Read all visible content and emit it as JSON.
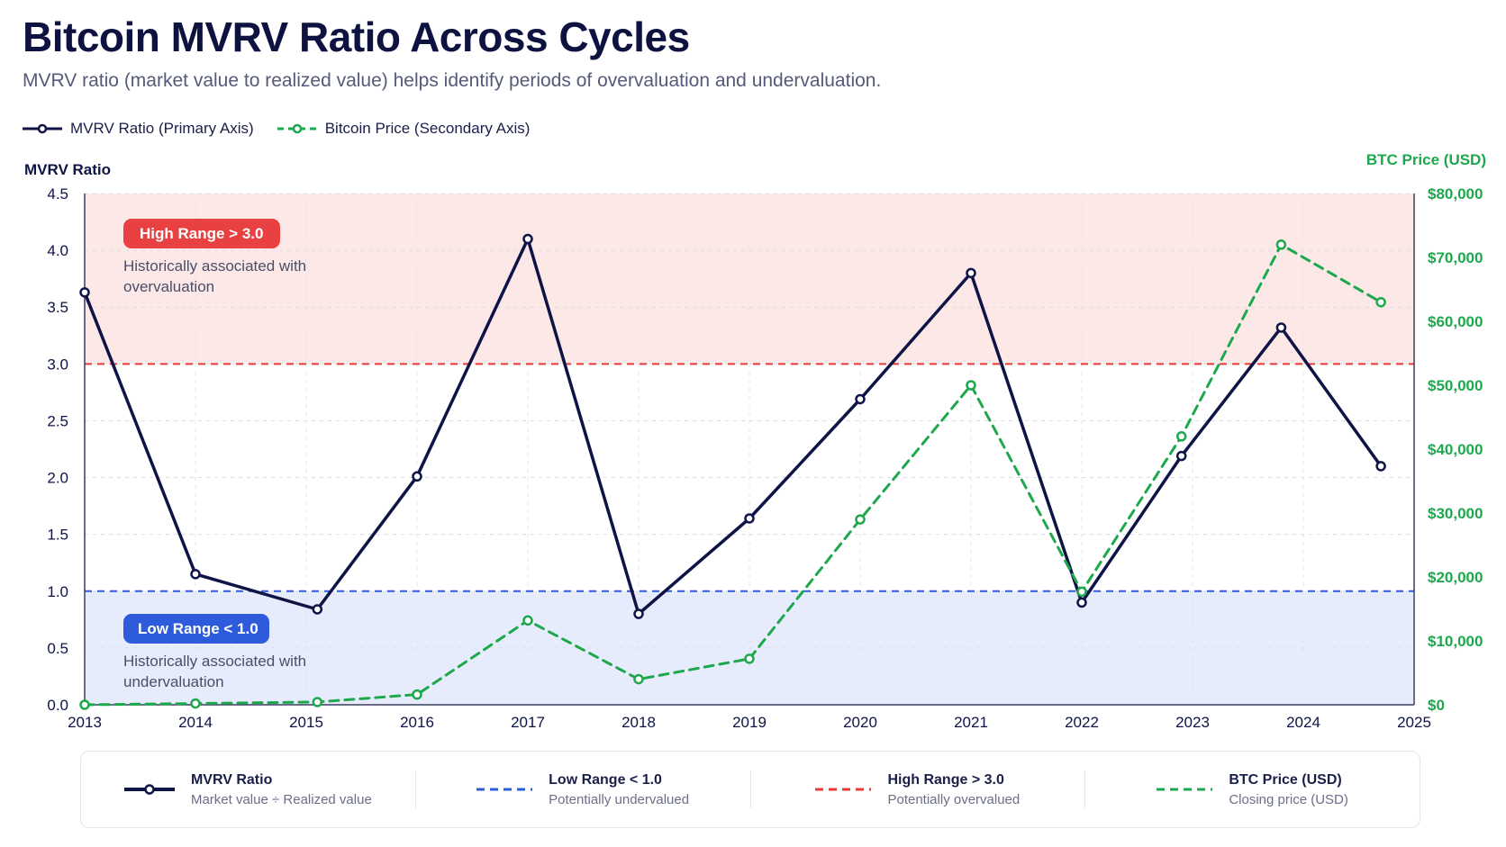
{
  "header": {
    "title": "Bitcoin MVRV Ratio Across Cycles",
    "subtitle": "MVRV ratio (market value to realized value) helps identify periods of overvaluation and undervaluation."
  },
  "top_legend": [
    {
      "label": "MVRV Ratio (Primary Axis)",
      "color": "#0f1446",
      "style": "solid"
    },
    {
      "label": "Bitcoin Price (Secondary Axis)",
      "color": "#1ea84d",
      "style": "dashed"
    }
  ],
  "bands": {
    "high": {
      "badge": "High Range > 3.0",
      "note": [
        "Historically associated with",
        "overvaluation"
      ],
      "color": "#e63b3b"
    },
    "low": {
      "badge": "Low Range < 1.0",
      "note": [
        "Historically associated with",
        "undervaluation"
      ],
      "color": "#2e5bdc"
    }
  },
  "bottom_legend": [
    {
      "name": "MVRV Ratio",
      "desc": "Market value ÷ Realized value",
      "color": "#0f1446",
      "style": "solid-marker"
    },
    {
      "name": "Low Range < 1.0",
      "desc": "Potentially undervalued",
      "color": "#2e5bdc",
      "style": "dashed"
    },
    {
      "name": "High Range > 3.0",
      "desc": "Potentially overvalued",
      "color": "#e63b3b",
      "style": "dashed"
    },
    {
      "name": "BTC Price (USD)",
      "desc": "Closing price (USD)",
      "color": "#1ea84d",
      "style": "dashed"
    }
  ],
  "chart_data": {
    "type": "line",
    "title": "Bitcoin MVRV Ratio Across Cycles",
    "xlabel": "",
    "ylabel": "MVRV Ratio",
    "y2label": "BTC Price (USD)",
    "xlim": [
      2013,
      2025
    ],
    "ylim": [
      0,
      4.5
    ],
    "y2lim": [
      0,
      80000
    ],
    "x_ticks": [
      2013,
      2014,
      2015,
      2016,
      2017,
      2018,
      2019,
      2020,
      2021,
      2022,
      2023,
      2024,
      2025
    ],
    "y_ticks": [
      "0.0",
      "0.5",
      "1.0",
      "1.5",
      "2.0",
      "2.5",
      "3.0",
      "3.5",
      "4.0",
      "4.5"
    ],
    "y2_ticks": [
      "$0",
      "$10,000",
      "$20,000",
      "$30,000",
      "$40,000",
      "$50,000",
      "$60,000",
      "$70,000",
      "$80,000"
    ],
    "thresholds": {
      "low": 1.0,
      "high": 3.0
    },
    "grid": true,
    "series": [
      {
        "name": "MVRV Ratio",
        "axis": "primary",
        "color": "#0f1446",
        "x": [
          2013.0,
          2014.0,
          2015.1,
          2016.0,
          2017.0,
          2018.0,
          2019.0,
          2020.0,
          2021.0,
          2022.0,
          2022.9,
          2023.8,
          2024.7
        ],
        "values": [
          3.63,
          1.15,
          0.84,
          2.01,
          4.1,
          0.8,
          1.64,
          2.69,
          3.8,
          0.9,
          2.19,
          3.32,
          2.1
        ]
      },
      {
        "name": "Bitcoin Price",
        "axis": "secondary",
        "color": "#1ea84d",
        "x": [
          2013.0,
          2014.0,
          2015.1,
          2016.0,
          2017.0,
          2018.0,
          2019.0,
          2020.0,
          2021.0,
          2022.0,
          2022.9,
          2023.8,
          2024.7
        ],
        "values": [
          0,
          200,
          430,
          1600,
          13200,
          4000,
          7200,
          29000,
          50000,
          17700,
          42000,
          72000,
          63000
        ]
      }
    ]
  }
}
